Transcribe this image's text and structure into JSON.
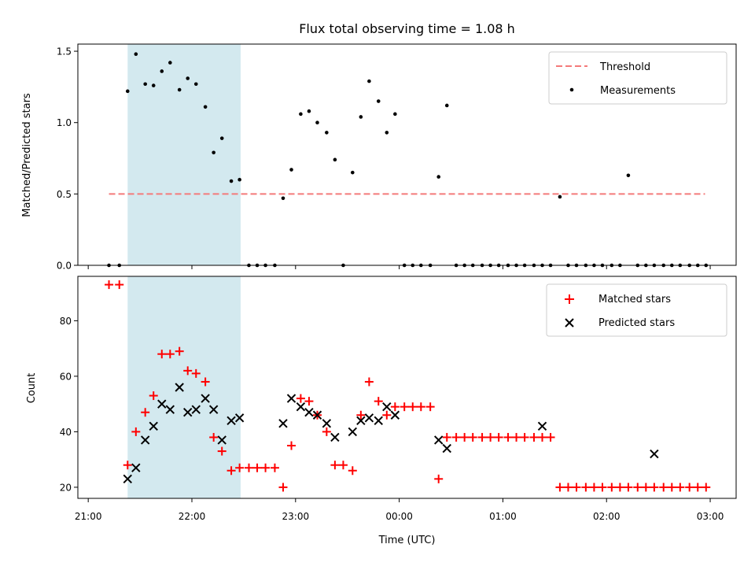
{
  "chart_data": [
    {
      "type": "scatter",
      "title": "Flux total observing time = 1.08 h",
      "ylabel": "Matched/Predicted stars",
      "xlim": [
        -0.1,
        6.25
      ],
      "ylim": [
        0.0,
        1.55
      ],
      "yticks": [
        0.0,
        0.5,
        1.0,
        1.5
      ],
      "ytick_labels": [
        "0.0",
        "0.5",
        "1.0",
        "1.5"
      ],
      "shaded_span": [
        0.38,
        1.47
      ],
      "shade_color": "#d3e9ef",
      "threshold": {
        "name": "Threshold",
        "y": 0.5,
        "x": [
          0.2,
          5.95
        ],
        "color": "#f47a7a"
      },
      "series": [
        {
          "name": "Measurements",
          "color": "#000000",
          "x": [
            0.2,
            0.3,
            0.38,
            0.46,
            0.55,
            0.63,
            0.71,
            0.79,
            0.88,
            0.96,
            1.04,
            1.13,
            1.21,
            1.29,
            1.38,
            1.46,
            1.55,
            1.63,
            1.71,
            1.8,
            1.88,
            1.96,
            2.05,
            2.13,
            2.21,
            2.3,
            2.38,
            2.46,
            2.55,
            2.63,
            2.71,
            2.8,
            2.88,
            2.96,
            3.05,
            3.13,
            3.21,
            3.3,
            3.38,
            3.46,
            3.55,
            3.63,
            3.71,
            3.8,
            3.88,
            3.96,
            4.05,
            4.13,
            4.21,
            4.3,
            4.38,
            4.46,
            4.55,
            4.63,
            4.71,
            4.8,
            4.88,
            4.96,
            5.05,
            5.13,
            5.21,
            5.3,
            5.38,
            5.46,
            5.55,
            5.63,
            5.71,
            5.8,
            5.88,
            5.96
          ],
          "y": [
            0.0,
            0.0,
            1.22,
            1.48,
            1.27,
            1.26,
            1.36,
            1.42,
            1.23,
            1.31,
            1.27,
            1.11,
            0.79,
            0.89,
            0.59,
            0.6,
            0.0,
            0.0,
            0.0,
            0.0,
            0.47,
            0.67,
            1.06,
            1.08,
            1.0,
            0.93,
            0.74,
            0.0,
            0.65,
            1.04,
            1.29,
            1.15,
            0.93,
            1.06,
            0.0,
            0.0,
            0.0,
            0.0,
            0.62,
            1.12,
            0.0,
            0.0,
            0.0,
            0.0,
            0.0,
            0.0,
            0.0,
            0.0,
            0.0,
            0.0,
            0.0,
            0.0,
            0.48,
            0.0,
            0.0,
            0.0,
            0.0,
            0.0,
            0.0,
            0.0,
            0.63,
            0.0,
            0.0,
            0.0,
            0.0,
            0.0,
            0.0,
            0.0,
            0.0,
            0.0
          ]
        }
      ],
      "legend_position": "top-right"
    },
    {
      "type": "scatter",
      "xlabel": "Time (UTC)",
      "ylabel": "Count",
      "xlim": [
        -0.1,
        6.25
      ],
      "ylim": [
        16,
        96
      ],
      "yticks": [
        20,
        40,
        60,
        80
      ],
      "ytick_labels": [
        "20",
        "40",
        "60",
        "80"
      ],
      "xticks": [
        0,
        1,
        2,
        3,
        4,
        5,
        6
      ],
      "xtick_labels": [
        "21:00",
        "22:00",
        "23:00",
        "00:00",
        "01:00",
        "02:00",
        "03:00"
      ],
      "shaded_span": [
        0.38,
        1.47
      ],
      "shade_color": "#d3e9ef",
      "series": [
        {
          "name": "Matched stars",
          "marker": "plus",
          "color": "#ff0000",
          "x": [
            0.2,
            0.3,
            0.38,
            0.46,
            0.55,
            0.63,
            0.71,
            0.79,
            0.88,
            0.96,
            1.04,
            1.13,
            1.21,
            1.29,
            1.38,
            1.46,
            1.55,
            1.63,
            1.71,
            1.8,
            1.88,
            1.96,
            2.05,
            2.13,
            2.21,
            2.3,
            2.38,
            2.46,
            2.55,
            2.63,
            2.71,
            2.8,
            2.88,
            2.96,
            3.05,
            3.13,
            3.21,
            3.3,
            3.38,
            3.46,
            3.55,
            3.63,
            3.71,
            3.8,
            3.88,
            3.96,
            4.05,
            4.13,
            4.21,
            4.3,
            4.38,
            4.46,
            4.55,
            4.63,
            4.71,
            4.8,
            4.88,
            4.96,
            5.05,
            5.13,
            5.21,
            5.3,
            5.38,
            5.46,
            5.55,
            5.63,
            5.71,
            5.8,
            5.88,
            5.96
          ],
          "y": [
            93,
            93,
            28,
            40,
            47,
            53,
            68,
            68,
            69,
            62,
            61,
            58,
            38,
            33,
            26,
            27,
            27,
            27,
            27,
            27,
            20,
            35,
            52,
            51,
            46,
            40,
            28,
            28,
            26,
            46,
            58,
            51,
            46,
            49,
            49,
            49,
            49,
            49,
            23,
            38,
            38,
            38,
            38,
            38,
            38,
            38,
            38,
            38,
            38,
            38,
            38,
            38,
            20,
            20,
            20,
            20,
            20,
            20,
            20,
            20,
            20,
            20,
            20,
            20,
            20,
            20,
            20,
            20,
            20,
            20
          ]
        },
        {
          "name": "Predicted stars",
          "marker": "x",
          "color": "#000000",
          "x": [
            0.38,
            0.46,
            0.55,
            0.63,
            0.71,
            0.79,
            0.88,
            0.96,
            1.04,
            1.13,
            1.21,
            1.29,
            1.38,
            1.46,
            1.88,
            1.96,
            2.05,
            2.13,
            2.21,
            2.3,
            2.38,
            2.55,
            2.63,
            2.71,
            2.8,
            2.88,
            2.96,
            3.38,
            3.46,
            4.38,
            5.46
          ],
          "y": [
            23,
            27,
            37,
            42,
            50,
            48,
            56,
            47,
            48,
            52,
            48,
            37,
            44,
            45,
            43,
            52,
            49,
            47,
            46,
            43,
            38,
            40,
            44,
            45,
            44,
            49,
            46,
            37,
            34,
            42,
            32
          ]
        }
      ],
      "legend_position": "top-right"
    }
  ]
}
